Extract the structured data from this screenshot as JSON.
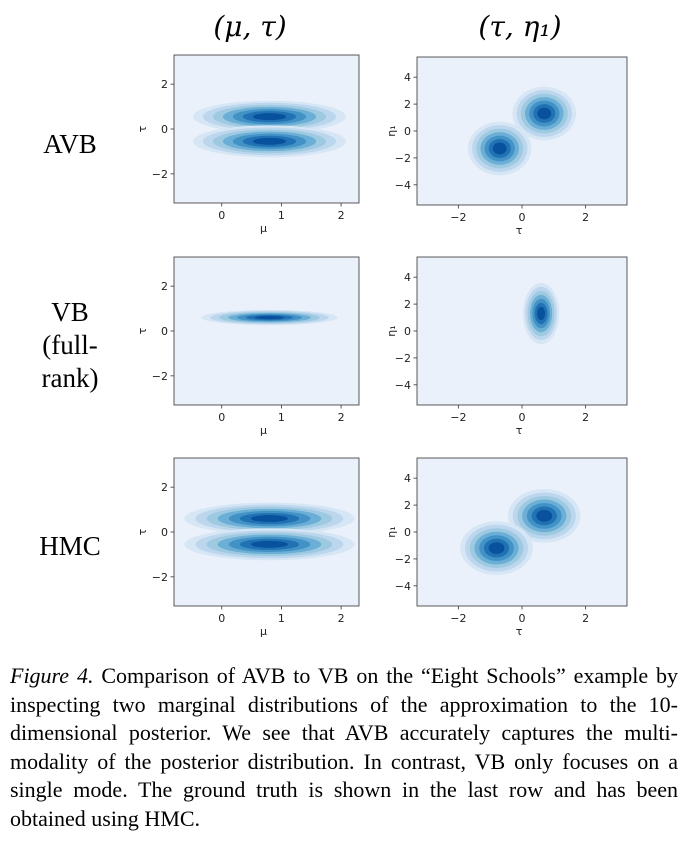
{
  "columns": [
    "(μ, τ)",
    "(τ, η₁)"
  ],
  "rows": [
    {
      "label_lines": [
        "AVB"
      ]
    },
    {
      "label_lines": [
        "VB",
        "(full-",
        "rank)"
      ]
    },
    {
      "label_lines": [
        "HMC"
      ]
    }
  ],
  "caption": {
    "figure_label": "Figure 4.",
    "text": "Comparison of AVB to VB on the “Eight Schools” example by inspecting two marginal distributions of the approximation to the 10-dimensional posterior. We see that AVB accurately captures the multi-modality of the posterior distribution. In contrast, VB only focuses on a single mode. The ground truth is shown in the last row and has been obtained using HMC."
  },
  "colors": {
    "background": "#eaf1fb",
    "density_levels": [
      "#d6e6f5",
      "#bcd6ed",
      "#9ecae1",
      "#6baed6",
      "#4292c6",
      "#2171b5",
      "#08519c"
    ]
  },
  "chart_data": [
    {
      "type": "heatmap",
      "row": "AVB",
      "title": "(μ, τ)",
      "xlabel": "μ",
      "ylabel": "τ",
      "xlim": [
        -0.8,
        2.3
      ],
      "ylim": [
        -3.3,
        3.3
      ],
      "xticks": [
        "0",
        "1",
        "2"
      ],
      "yticks": [
        "2",
        "0",
        "−2"
      ],
      "grid": false,
      "modes": [
        {
          "x": 0.8,
          "y": 0.55,
          "sx": 0.45,
          "sy": 0.25
        },
        {
          "x": 0.8,
          "y": -0.55,
          "sx": 0.45,
          "sy": 0.25
        }
      ]
    },
    {
      "type": "heatmap",
      "row": "AVB",
      "title": "(τ, η₁)",
      "xlabel": "τ",
      "ylabel": "η₁",
      "xlim": [
        -3.3,
        3.3
      ],
      "ylim": [
        -5.5,
        5.5
      ],
      "xticks": [
        "−2",
        "0",
        "2"
      ],
      "yticks": [
        "4",
        "2",
        "0",
        "−2",
        "−4"
      ],
      "grid": false,
      "modes": [
        {
          "x": 0.7,
          "y": 1.3,
          "sx": 0.35,
          "sy": 0.7
        },
        {
          "x": -0.7,
          "y": -1.3,
          "sx": 0.35,
          "sy": 0.7
        }
      ]
    },
    {
      "type": "heatmap",
      "row": "VB (full-rank)",
      "title": "(μ, τ)",
      "xlabel": "μ",
      "ylabel": "τ",
      "xlim": [
        -0.8,
        2.3
      ],
      "ylim": [
        -3.3,
        3.3
      ],
      "xticks": [
        "0",
        "1",
        "2"
      ],
      "yticks": [
        "2",
        "0",
        "−2"
      ],
      "grid": false,
      "modes": [
        {
          "x": 0.8,
          "y": 0.6,
          "sx": 0.4,
          "sy": 0.12
        }
      ]
    },
    {
      "type": "heatmap",
      "row": "VB (full-rank)",
      "title": "(τ, η₁)",
      "xlabel": "τ",
      "ylabel": "η₁",
      "xlim": [
        -3.3,
        3.3
      ],
      "ylim": [
        -5.5,
        5.5
      ],
      "xticks": [
        "−2",
        "0",
        "2"
      ],
      "yticks": [
        "4",
        "2",
        "0",
        "−2",
        "−4"
      ],
      "grid": false,
      "modes": [
        {
          "x": 0.6,
          "y": 1.3,
          "sx": 0.2,
          "sy": 0.8
        }
      ]
    },
    {
      "type": "heatmap",
      "row": "HMC",
      "title": "(μ, τ)",
      "xlabel": "μ",
      "ylabel": "τ",
      "xlim": [
        -0.8,
        2.3
      ],
      "ylim": [
        -3.3,
        3.3
      ],
      "xticks": [
        "0",
        "1",
        "2"
      ],
      "yticks": [
        "2",
        "0",
        "−2"
      ],
      "grid": false,
      "modes": [
        {
          "x": 0.8,
          "y": 0.6,
          "sx": 0.5,
          "sy": 0.25
        },
        {
          "x": 0.8,
          "y": -0.55,
          "sx": 0.5,
          "sy": 0.25
        }
      ]
    },
    {
      "type": "heatmap",
      "row": "HMC",
      "title": "(τ, η₁)",
      "xlabel": "τ",
      "ylabel": "η₁",
      "xlim": [
        -3.3,
        3.3
      ],
      "ylim": [
        -5.5,
        5.5
      ],
      "xticks": [
        "−2",
        "0",
        "2"
      ],
      "yticks": [
        "4",
        "2",
        "0",
        "−2",
        "−4"
      ],
      "grid": false,
      "modes": [
        {
          "x": 0.7,
          "y": 1.2,
          "sx": 0.4,
          "sy": 0.7
        },
        {
          "x": -0.8,
          "y": -1.2,
          "sx": 0.4,
          "sy": 0.7
        }
      ]
    }
  ]
}
